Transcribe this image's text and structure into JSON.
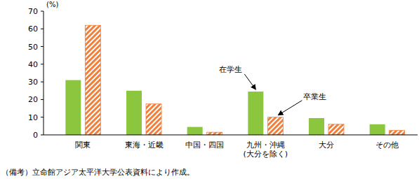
{
  "chart_data": {
    "type": "bar",
    "y_label": "(%)",
    "categories": [
      "関東",
      "東海・近畿",
      "中国・四国",
      "九州・沖縄\n(大分を除く)",
      "大分",
      "その他"
    ],
    "series": [
      {
        "name": "在学生",
        "color": "#8cc63f",
        "values": [
          31,
          25,
          4.5,
          24.5,
          9.5,
          6
        ]
      },
      {
        "name": "卒業生",
        "color": "#ef7f3a",
        "values": [
          62,
          17.5,
          1.5,
          10,
          6,
          2.5
        ]
      }
    ],
    "ylim": [
      0,
      70
    ],
    "yticks": [
      0,
      10,
      20,
      30,
      40,
      50,
      60,
      70
    ],
    "grid": false,
    "note": "（備考）立命館アジア太平洋大学公表資料により作成。"
  }
}
